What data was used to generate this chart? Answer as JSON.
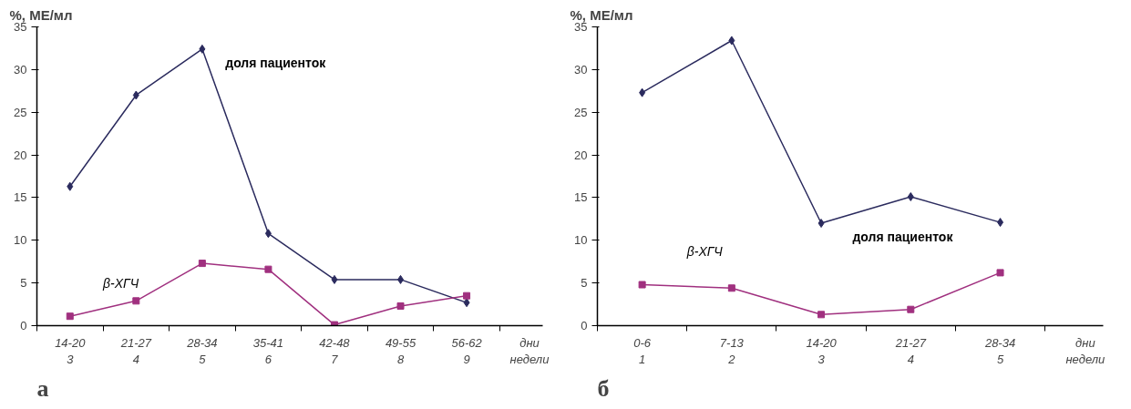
{
  "chart_data": [
    {
      "type": "line",
      "ylabel": "%, МЕ/мл",
      "xlabel": "дни\nнедели",
      "categories": [
        "14-20\n3",
        "21-27\n4",
        "28-34\n5",
        "35-41\n6",
        "42-48\n7",
        "49-55\n8",
        "56-62\n9"
      ],
      "ylim": [
        0,
        35
      ],
      "yticks": [
        0,
        5,
        10,
        15,
        20,
        25,
        30,
        35
      ],
      "grid": false,
      "legend": false,
      "annotations": [
        "а"
      ],
      "series": [
        {
          "name": "доля пациенток",
          "color": "#2b2b5e",
          "marker": "diamond",
          "values": [
            16.3,
            27.0,
            32.4,
            10.8,
            5.4,
            5.4,
            2.7
          ]
        },
        {
          "name": "β-ХГЧ",
          "color": "#a0307f",
          "marker": "square",
          "values": [
            1.1,
            2.9,
            7.3,
            6.6,
            0.1,
            2.3,
            3.5
          ]
        }
      ]
    },
    {
      "type": "line",
      "ylabel": "%, МЕ/мл",
      "xlabel": "дни\nнедели",
      "categories": [
        "0-6\n1",
        "7-13\n2",
        "14-20\n3",
        "21-27\n4",
        "28-34\n5"
      ],
      "ylim": [
        0,
        35
      ],
      "yticks": [
        0,
        5,
        10,
        15,
        20,
        25,
        30,
        35
      ],
      "grid": false,
      "legend": false,
      "annotations": [
        "б"
      ],
      "series": [
        {
          "name": "доля пациенток",
          "color": "#2b2b5e",
          "marker": "diamond",
          "values": [
            27.3,
            33.4,
            12.0,
            15.1,
            12.1
          ]
        },
        {
          "name": "β-ХГЧ",
          "color": "#a0307f",
          "marker": "square",
          "values": [
            4.8,
            4.4,
            1.3,
            1.9,
            6.2
          ]
        }
      ]
    }
  ]
}
